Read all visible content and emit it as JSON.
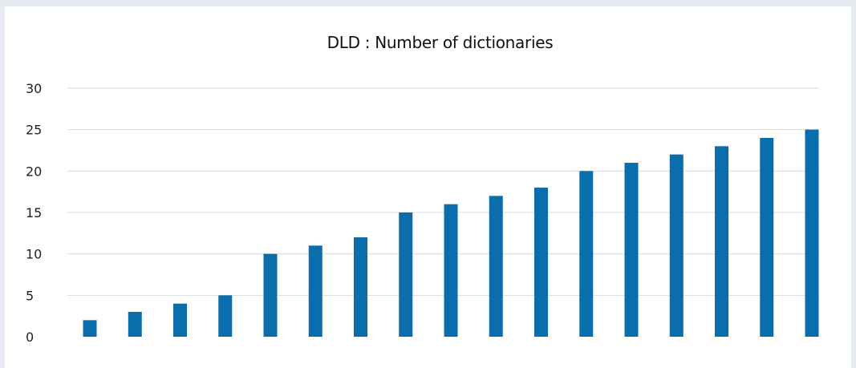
{
  "chart_data": {
    "type": "bar",
    "title": "DLD : Number of dictionaries",
    "xlabel": "",
    "ylabel": "",
    "categories": [
      "",
      "",
      "",
      "",
      "",
      "",
      "",
      "",
      "",
      "",
      "",
      "",
      "",
      "",
      "",
      "",
      ""
    ],
    "values": [
      2,
      3,
      4,
      5,
      10,
      11,
      12,
      15,
      16,
      17,
      18,
      20,
      21,
      22,
      23,
      24,
      25
    ],
    "ylim": [
      0,
      30
    ],
    "yticks": [
      0,
      5,
      10,
      15,
      20,
      25,
      30
    ],
    "grid": true,
    "legend": "none",
    "bar_color": "#0a6eac",
    "grid_color": "#d9d9d9"
  }
}
